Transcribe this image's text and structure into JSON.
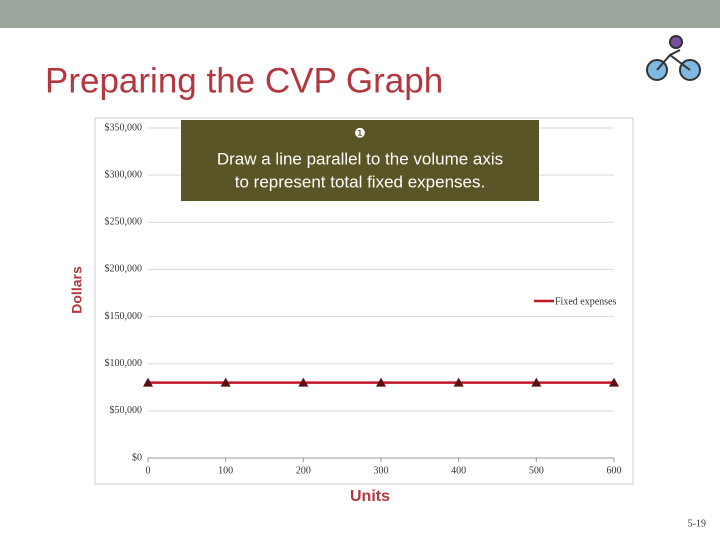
{
  "slide_title": "Preparing the CVP Graph",
  "callout": {
    "number": "❶",
    "lines": [
      "Draw a line parallel to the volume axis",
      "to represent total fixed expenses."
    ]
  },
  "page_number": "5-19",
  "chart_data": {
    "type": "line",
    "xlabel": "Units",
    "ylabel": "Dollars",
    "x": [
      0,
      100,
      200,
      300,
      400,
      500,
      600
    ],
    "series": [
      {
        "name": "Fixed expenses",
        "color": "#c0182a",
        "values": [
          80000,
          80000,
          80000,
          80000,
          80000,
          80000,
          80000
        ]
      }
    ],
    "xlim": [
      0,
      600
    ],
    "xticks": [
      0,
      100,
      200,
      300,
      400,
      500,
      600
    ],
    "ylim": [
      0,
      350000
    ],
    "yticks": [
      {
        "value": 0,
        "label": "$0"
      },
      {
        "value": 50000,
        "label": "$50,000"
      },
      {
        "value": 100000,
        "label": "$100,000"
      },
      {
        "value": 150000,
        "label": "$150,000"
      },
      {
        "value": 200000,
        "label": "$200,000"
      },
      {
        "value": 250000,
        "label": "$250,000"
      },
      {
        "value": 300000,
        "label": "$300,000"
      },
      {
        "value": 350000,
        "label": "$350,000"
      }
    ],
    "grid": true,
    "legend": "right"
  }
}
